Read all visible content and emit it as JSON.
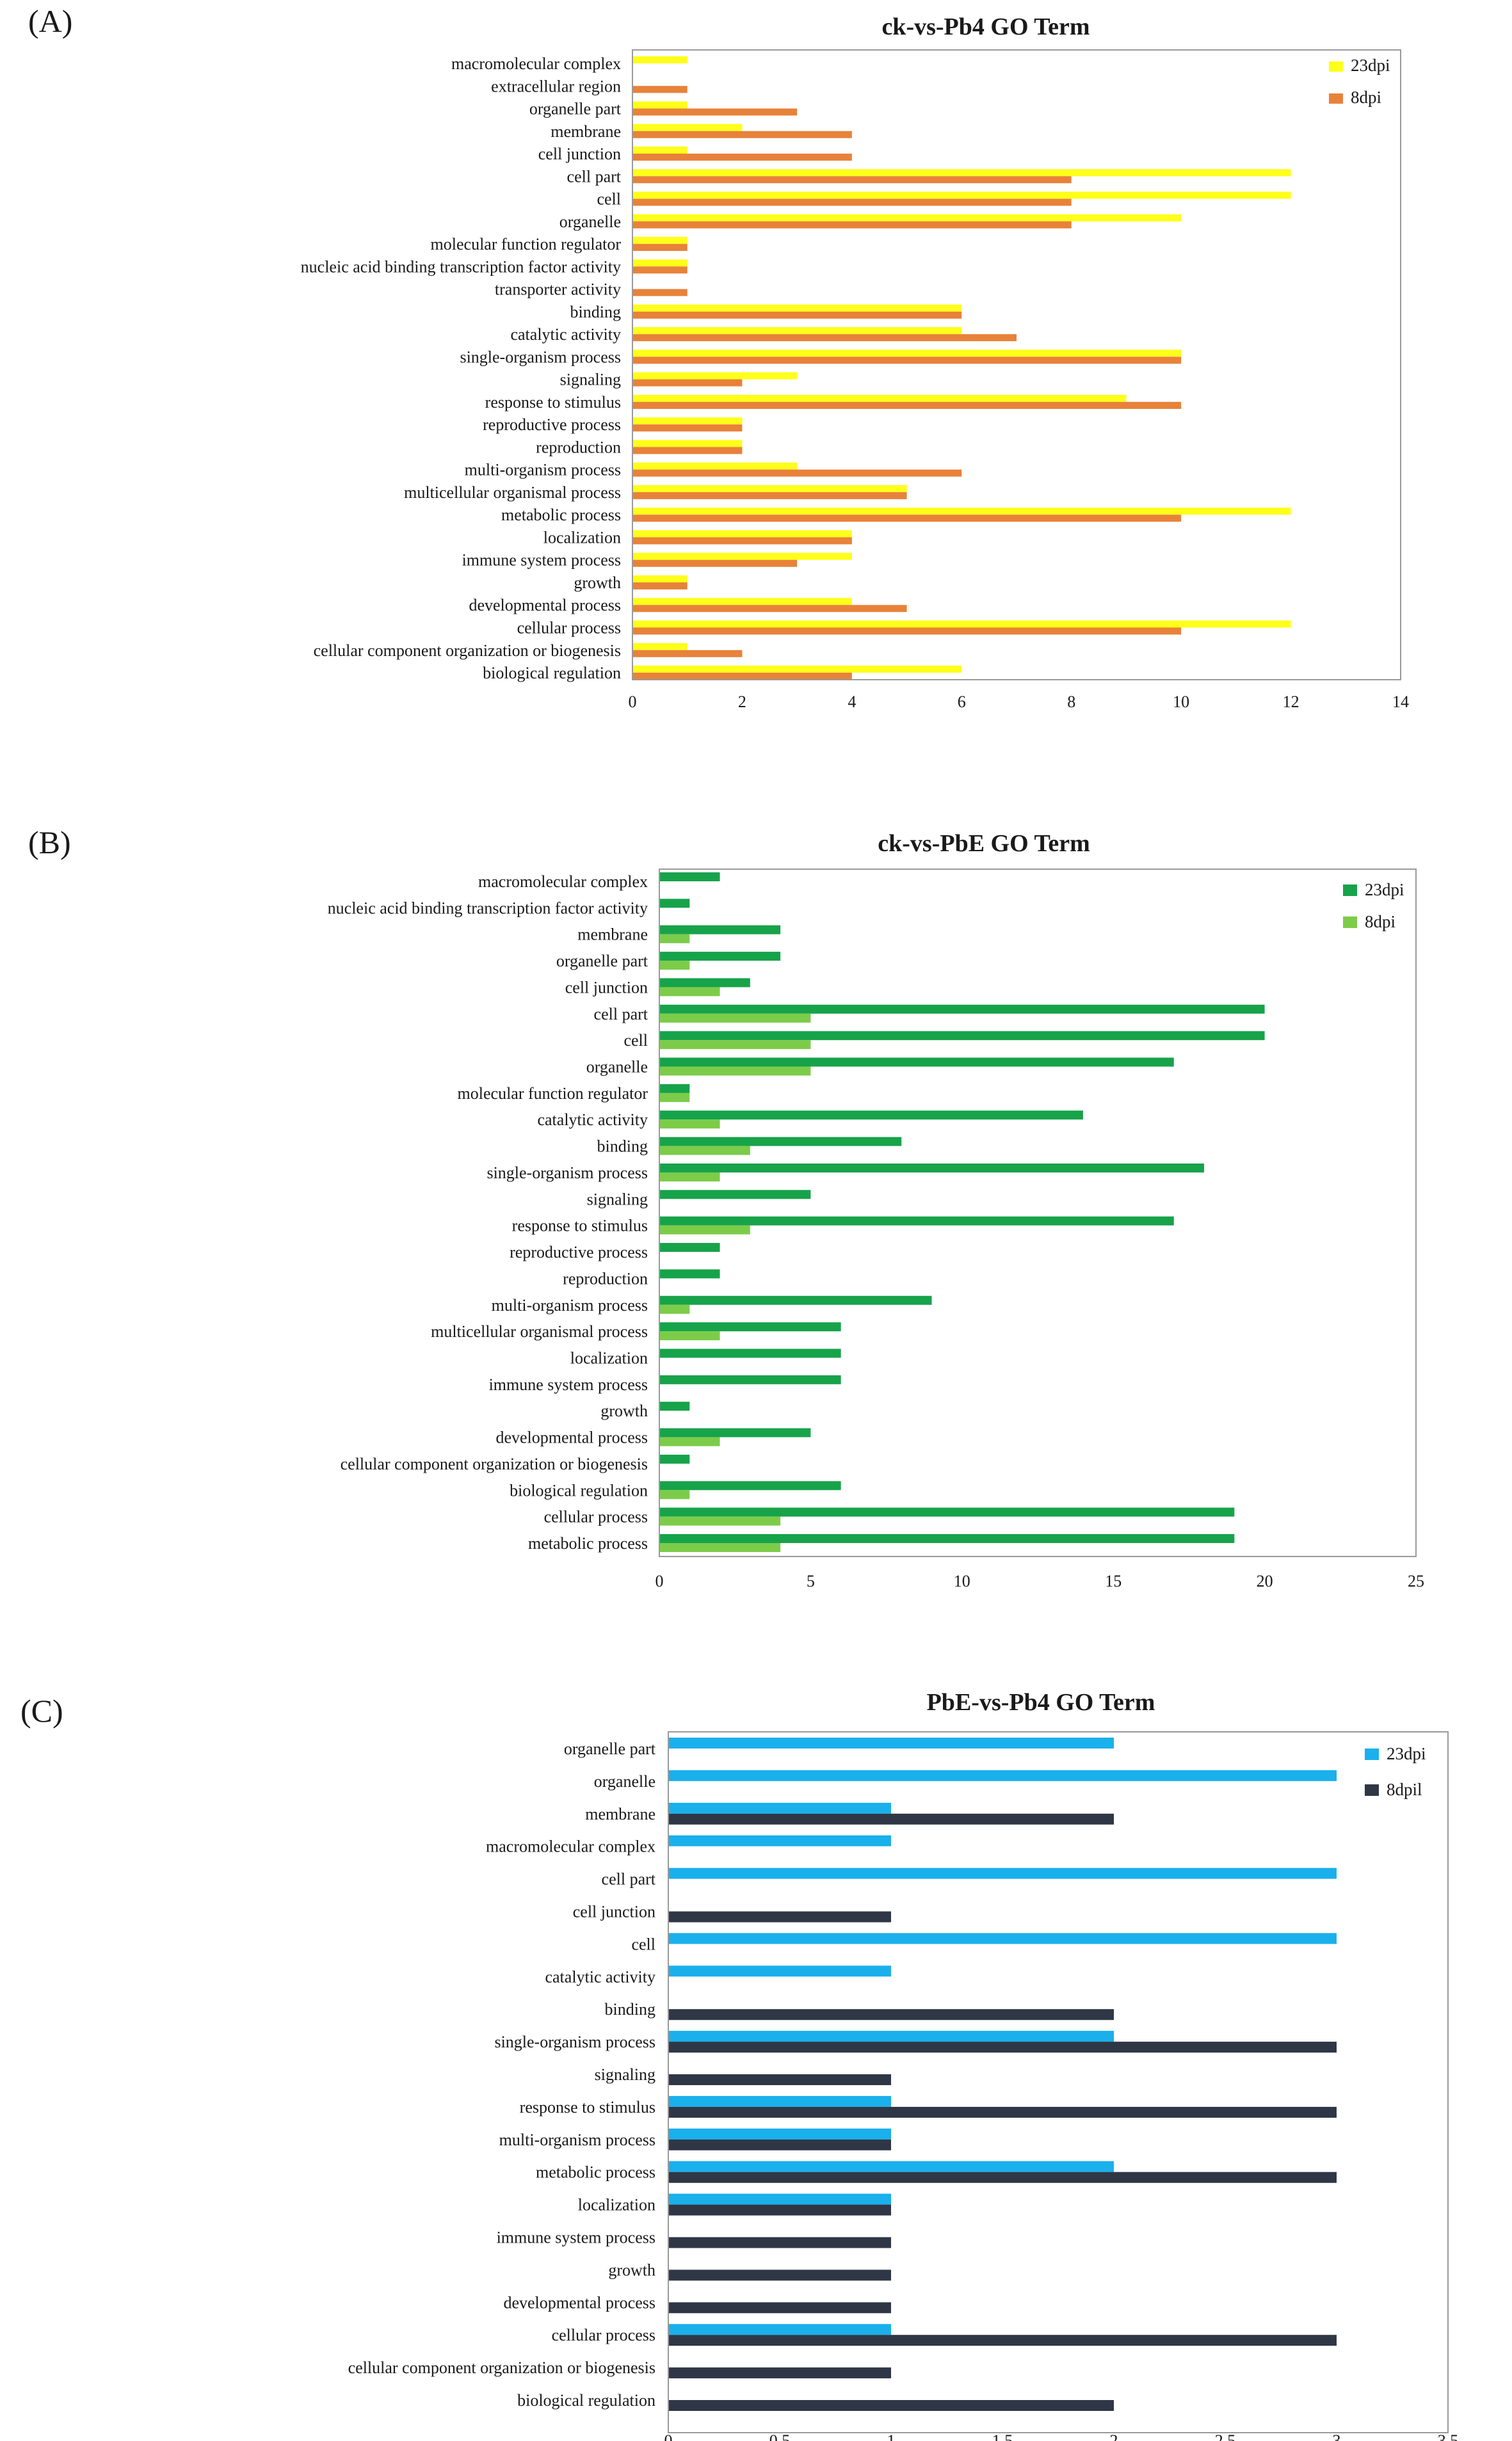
{
  "chart_data": [
    {
      "type": "bar",
      "orientation": "horizontal",
      "panel_label": "(A)",
      "title": "ck-vs-Pb4 GO Term",
      "xlabel": "",
      "ylabel": "",
      "xlim": [
        0,
        14
      ],
      "xticks": [
        0,
        2,
        4,
        6,
        8,
        10,
        12,
        14
      ],
      "xtick_labels": [
        "0",
        "2",
        "4",
        "6",
        "8",
        "10",
        "12",
        "14"
      ],
      "legend_position": "top-right",
      "categories": [
        "macromolecular complex",
        "extracellular region",
        "organelle part",
        "membrane",
        "cell junction",
        "cell part",
        "cell",
        "organelle",
        "molecular function regulator",
        "nucleic acid binding transcription factor activity",
        "transporter activity",
        "binding",
        "catalytic activity",
        "single-organism process",
        "signaling",
        "response to stimulus",
        "reproductive process",
        "reproduction",
        "multi-organism process",
        "multicellular organismal process",
        "metabolic process",
        "localization",
        "immune system process",
        "growth",
        "developmental process",
        "cellular process",
        "cellular component organization or biogenesis",
        "biological regulation"
      ],
      "series": [
        {
          "name": "23dpi",
          "color": "#ffff1a",
          "values": [
            1,
            0,
            1,
            2,
            1,
            12,
            12,
            10,
            1,
            1,
            0,
            6,
            6,
            10,
            3,
            9,
            2,
            2,
            3,
            5,
            12,
            4,
            4,
            1,
            4,
            12,
            1,
            6
          ]
        },
        {
          "name": "8dpi",
          "color": "#e8823a",
          "values": [
            0,
            1,
            3,
            4,
            4,
            8,
            8,
            8,
            1,
            1,
            1,
            6,
            7,
            10,
            2,
            10,
            2,
            2,
            6,
            5,
            10,
            4,
            3,
            1,
            5,
            10,
            2,
            4
          ]
        }
      ]
    },
    {
      "type": "bar",
      "orientation": "horizontal",
      "panel_label": "(B)",
      "title": "ck-vs-PbE GO Term",
      "xlabel": "",
      "ylabel": "",
      "xlim": [
        0,
        25
      ],
      "xticks": [
        0,
        5,
        10,
        15,
        20,
        25
      ],
      "xtick_labels": [
        "0",
        "5",
        "10",
        "15",
        "20",
        "25"
      ],
      "legend_position": "top-right",
      "categories": [
        "macromolecular complex",
        "nucleic acid binding transcription factor activity",
        "membrane",
        "organelle part",
        "cell junction",
        "cell part",
        "cell",
        "organelle",
        "molecular function regulator",
        "catalytic activity",
        "binding",
        "single-organism process",
        "signaling",
        "response to stimulus",
        "reproductive process",
        "reproduction",
        "multi-organism process",
        "multicellular organismal process",
        "localization",
        "immune system process",
        "growth",
        "developmental process",
        "cellular component  organization or biogenesis",
        "biological regulation",
        "cellular process",
        "metabolic process"
      ],
      "series": [
        {
          "name": "23dpi",
          "color": "#17a34a",
          "values": [
            2,
            1,
            4,
            4,
            3,
            20,
            20,
            17,
            1,
            14,
            8,
            18,
            5,
            17,
            2,
            2,
            9,
            6,
            6,
            6,
            1,
            5,
            1,
            6,
            19,
            19
          ]
        },
        {
          "name": "8dpi",
          "color": "#7ccc4a",
          "values": [
            0,
            0,
            1,
            1,
            2,
            5,
            5,
            5,
            1,
            2,
            3,
            2,
            0,
            3,
            0,
            0,
            1,
            2,
            0,
            0,
            0,
            2,
            0,
            1,
            4,
            4
          ]
        }
      ]
    },
    {
      "type": "bar",
      "orientation": "horizontal",
      "panel_label": "(C)",
      "title": "PbE-vs-Pb4 GO Term",
      "xlabel": "",
      "ylabel": "",
      "xlim": [
        0,
        3.5
      ],
      "xticks": [
        0,
        0.5,
        1,
        1.5,
        2,
        2.5,
        3,
        3.5
      ],
      "xtick_labels": [
        "0",
        "0.5",
        "1",
        "1.5",
        "2",
        "2.5",
        "3",
        "3.5"
      ],
      "legend_position": "top-right",
      "categories": [
        "organelle part",
        "organelle",
        "membrane",
        "macromolecular complex",
        "cell part",
        "cell junction",
        "cell",
        "catalytic activity",
        "binding",
        "single-organism process",
        "signaling",
        "response to stimulus",
        "multi-organism process",
        "metabolic process",
        "localization",
        "immune system process",
        "growth",
        "developmental process",
        "cellular process",
        "cellular component organization or biogenesis",
        "biological regulation"
      ],
      "series": [
        {
          "name": "23dpi",
          "color": "#1ab0ec",
          "values": [
            2,
            3,
            1,
            1,
            3,
            0,
            3,
            1,
            0,
            2,
            0,
            1,
            1,
            2,
            1,
            0,
            0,
            0,
            1,
            0,
            0
          ]
        },
        {
          "name": "8dpil",
          "color": "#2f3746",
          "values": [
            0,
            0,
            2,
            0,
            0,
            1,
            0,
            0,
            2,
            3,
            1,
            3,
            1,
            3,
            1,
            1,
            1,
            1,
            3,
            1,
            2
          ]
        }
      ]
    }
  ]
}
